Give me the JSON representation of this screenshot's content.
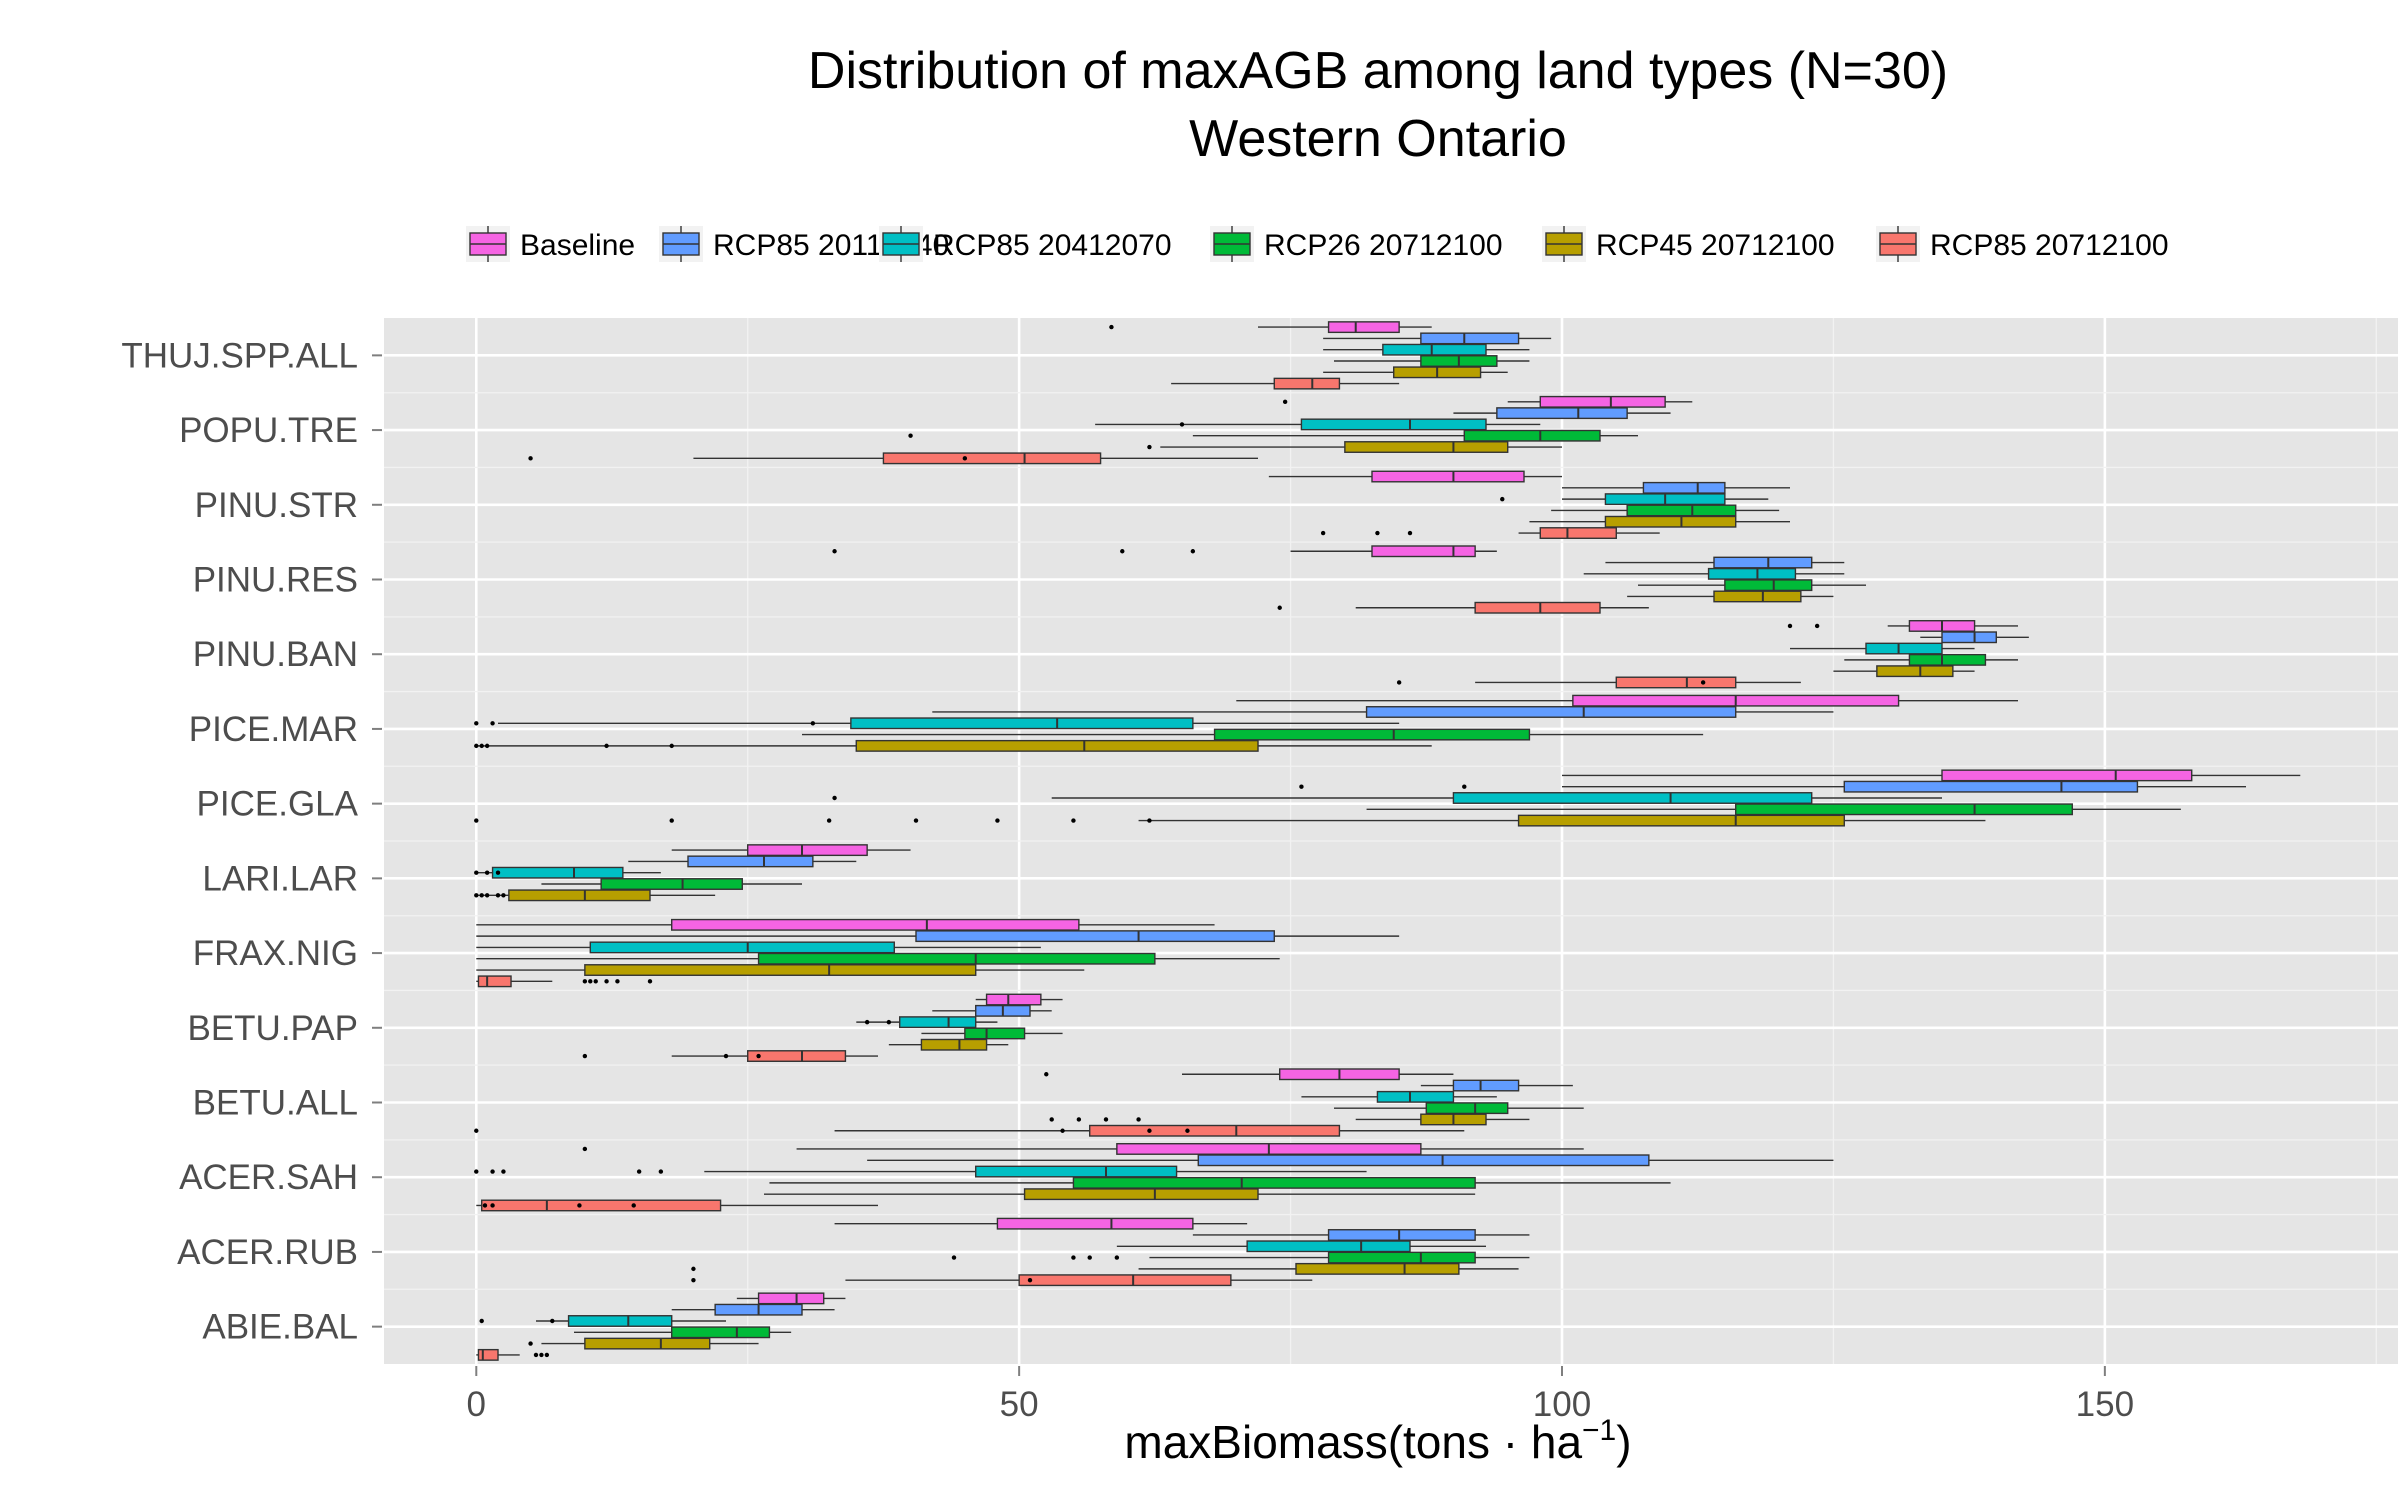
{
  "chart_data": {
    "type": "boxplot",
    "title": "Distribution of maxAGB among land types (N=30)",
    "subtitle": "Western Ontario",
    "xlabel": "maxBiomass(tons",
    "xlabel_unit": "ha",
    "xlabel_exp": "−1",
    "xlim": [
      -8.5,
      177
    ],
    "x_ticks": [
      0,
      50,
      100,
      150
    ],
    "x_tick_labels": [
      "0",
      "50",
      "100",
      "150"
    ],
    "grid": true,
    "legend_position": "top",
    "series": [
      {
        "name": "Baseline",
        "color": "#F564E3"
      },
      {
        "name": "RCP85 20112040",
        "color": "#619CFF"
      },
      {
        "name": "RCP85 20412070",
        "color": "#00BFC4"
      },
      {
        "name": "RCP26 20712100",
        "color": "#00BA38"
      },
      {
        "name": "RCP45 20712100",
        "color": "#B79F00"
      },
      {
        "name": "RCP85 20712100",
        "color": "#F8766D"
      }
    ],
    "categories": [
      "THUJ.SPP.ALL",
      "POPU.TRE",
      "PINU.STR",
      "PINU.RES",
      "PINU.BAN",
      "PICE.MAR",
      "PICE.GLA",
      "LARI.LAR",
      "FRAX.NIG",
      "BETU.PAP",
      "BETU.ALL",
      "ACER.SAH",
      "ACER.RUB",
      "ABIE.BAL"
    ],
    "boxes": [
      {
        "cat": "THUJ.SPP.ALL",
        "series": "Baseline",
        "stats": [
          72,
          78.5,
          81,
          85,
          88
        ],
        "outliers": [
          58.5
        ]
      },
      {
        "cat": "THUJ.SPP.ALL",
        "series": "RCP85 20112040",
        "stats": [
          78,
          87,
          91,
          96,
          99
        ],
        "outliers": []
      },
      {
        "cat": "THUJ.SPP.ALL",
        "series": "RCP85 20412070",
        "stats": [
          78,
          83.5,
          88,
          93,
          97
        ],
        "outliers": []
      },
      {
        "cat": "THUJ.SPP.ALL",
        "series": "RCP26 20712100",
        "stats": [
          79,
          87,
          90.5,
          94,
          97
        ],
        "outliers": []
      },
      {
        "cat": "THUJ.SPP.ALL",
        "series": "RCP45 20712100",
        "stats": [
          78,
          84.5,
          88.5,
          92.5,
          95
        ],
        "outliers": []
      },
      {
        "cat": "THUJ.SPP.ALL",
        "series": "RCP85 20712100",
        "stats": [
          64,
          73.5,
          77,
          79.5,
          85
        ],
        "outliers": []
      },
      {
        "cat": "POPU.TRE",
        "series": "Baseline",
        "stats": [
          95,
          98,
          104.5,
          109.5,
          112
        ],
        "outliers": [
          74.5
        ]
      },
      {
        "cat": "POPU.TRE",
        "series": "RCP85 20112040",
        "stats": [
          90,
          94,
          101.5,
          106,
          110
        ],
        "outliers": []
      },
      {
        "cat": "POPU.TRE",
        "series": "RCP85 20412070",
        "stats": [
          57,
          76,
          86,
          93,
          98
        ],
        "outliers": [
          65
        ]
      },
      {
        "cat": "POPU.TRE",
        "series": "RCP26 20712100",
        "stats": [
          66,
          91,
          98,
          103.5,
          107
        ],
        "outliers": [
          40
        ]
      },
      {
        "cat": "POPU.TRE",
        "series": "RCP45 20712100",
        "stats": [
          63,
          80,
          90,
          95,
          100
        ],
        "outliers": [
          62
        ]
      },
      {
        "cat": "POPU.TRE",
        "series": "RCP85 20712100",
        "stats": [
          20,
          37.5,
          50.5,
          57.5,
          72
        ],
        "outliers": [
          5,
          45
        ]
      },
      {
        "cat": "PINU.STR",
        "series": "Baseline",
        "stats": [
          73,
          82.5,
          90,
          96.5,
          100
        ],
        "outliers": []
      },
      {
        "cat": "PINU.STR",
        "series": "RCP85 20112040",
        "stats": [
          100,
          107.5,
          112.5,
          115,
          121
        ],
        "outliers": []
      },
      {
        "cat": "PINU.STR",
        "series": "RCP85 20412070",
        "stats": [
          100,
          104,
          109.5,
          115,
          119
        ],
        "outliers": [
          94.5
        ]
      },
      {
        "cat": "PINU.STR",
        "series": "RCP26 20712100",
        "stats": [
          99,
          106,
          112,
          116,
          120
        ],
        "outliers": []
      },
      {
        "cat": "PINU.STR",
        "series": "RCP45 20712100",
        "stats": [
          97,
          104,
          111,
          116,
          121
        ],
        "outliers": []
      },
      {
        "cat": "PINU.STR",
        "series": "RCP85 20712100",
        "stats": [
          96,
          98,
          100.5,
          105,
          109
        ],
        "outliers": [
          78,
          83,
          86
        ]
      },
      {
        "cat": "PINU.RES",
        "series": "Baseline",
        "stats": [
          75,
          82.5,
          90,
          92,
          94
        ],
        "outliers": [
          33,
          59.5,
          66
        ]
      },
      {
        "cat": "PINU.RES",
        "series": "RCP85 20112040",
        "stats": [
          104,
          114,
          119,
          123,
          126
        ],
        "outliers": []
      },
      {
        "cat": "PINU.RES",
        "series": "RCP85 20412070",
        "stats": [
          102,
          113.5,
          118,
          121.5,
          126
        ],
        "outliers": []
      },
      {
        "cat": "PINU.RES",
        "series": "RCP26 20712100",
        "stats": [
          107,
          115,
          119.5,
          123,
          128
        ],
        "outliers": []
      },
      {
        "cat": "PINU.RES",
        "series": "RCP45 20712100",
        "stats": [
          106,
          114,
          118.5,
          122,
          125
        ],
        "outliers": []
      },
      {
        "cat": "PINU.RES",
        "series": "RCP85 20712100",
        "stats": [
          81,
          92,
          98,
          103.5,
          108
        ],
        "outliers": [
          74
        ]
      },
      {
        "cat": "PINU.BAN",
        "series": "Baseline",
        "stats": [
          130,
          132,
          135,
          138,
          142
        ],
        "outliers": [
          121,
          123.5
        ]
      },
      {
        "cat": "PINU.BAN",
        "series": "RCP85 20112040",
        "stats": [
          133,
          135,
          138,
          140,
          143
        ],
        "outliers": []
      },
      {
        "cat": "PINU.BAN",
        "series": "RCP85 20412070",
        "stats": [
          121,
          128,
          131,
          135,
          138
        ],
        "outliers": []
      },
      {
        "cat": "PINU.BAN",
        "series": "RCP26 20712100",
        "stats": [
          126,
          132,
          135,
          139,
          142
        ],
        "outliers": []
      },
      {
        "cat": "PINU.BAN",
        "series": "RCP45 20712100",
        "stats": [
          125,
          129,
          133,
          136,
          138
        ],
        "outliers": []
      },
      {
        "cat": "PINU.BAN",
        "series": "RCP85 20712100",
        "stats": [
          92,
          105,
          111.5,
          116,
          122
        ],
        "outliers": [
          85,
          113
        ]
      },
      {
        "cat": "PICE.MAR",
        "series": "Baseline",
        "stats": [
          70,
          101,
          116,
          131,
          142
        ],
        "outliers": []
      },
      {
        "cat": "PICE.MAR",
        "series": "RCP85 20112040",
        "stats": [
          42,
          82,
          102,
          116,
          125
        ],
        "outliers": []
      },
      {
        "cat": "PICE.MAR",
        "series": "RCP85 20412070",
        "stats": [
          2,
          34.5,
          53.5,
          66,
          85
        ],
        "outliers": [
          0,
          1.5,
          31
        ]
      },
      {
        "cat": "PICE.MAR",
        "series": "RCP26 20712100",
        "stats": [
          30,
          68,
          84.5,
          97,
          113
        ],
        "outliers": []
      },
      {
        "cat": "PICE.MAR",
        "series": "RCP45 20712100",
        "stats": [
          0,
          35,
          56,
          72,
          88
        ],
        "outliers": [
          0,
          0.5,
          1,
          12,
          18
        ]
      },
      {
        "cat": "PICE.GLA",
        "series": "Baseline",
        "stats": [
          100,
          135,
          151,
          158,
          168
        ],
        "outliers": []
      },
      {
        "cat": "PICE.GLA",
        "series": "RCP85 20112040",
        "stats": [
          100,
          126,
          146,
          153,
          163
        ],
        "outliers": [
          91,
          76
        ]
      },
      {
        "cat": "PICE.GLA",
        "series": "RCP85 20412070",
        "stats": [
          53,
          90,
          110,
          123,
          135
        ],
        "outliers": [
          33
        ]
      },
      {
        "cat": "PICE.GLA",
        "series": "RCP26 20712100",
        "stats": [
          82,
          116,
          138,
          147,
          157
        ],
        "outliers": []
      },
      {
        "cat": "PICE.GLA",
        "series": "RCP45 20712100",
        "stats": [
          61,
          96,
          116,
          126,
          139
        ],
        "outliers": [
          0,
          18,
          32.5,
          40.5,
          48,
          55,
          62
        ]
      },
      {
        "cat": "LARI.LAR",
        "series": "Baseline",
        "stats": [
          18,
          25,
          30,
          36,
          40
        ],
        "outliers": []
      },
      {
        "cat": "LARI.LAR",
        "series": "RCP85 20112040",
        "stats": [
          14,
          19.5,
          26.5,
          31,
          35
        ],
        "outliers": []
      },
      {
        "cat": "LARI.LAR",
        "series": "RCP85 20412070",
        "stats": [
          0,
          1.5,
          9,
          13.5,
          17
        ],
        "outliers": [
          0,
          1,
          2
        ]
      },
      {
        "cat": "LARI.LAR",
        "series": "RCP26 20712100",
        "stats": [
          6,
          11.5,
          19,
          24.5,
          30
        ],
        "outliers": []
      },
      {
        "cat": "LARI.LAR",
        "series": "RCP45 20712100",
        "stats": [
          0,
          3,
          10,
          16,
          22
        ],
        "outliers": [
          0,
          0.5,
          1,
          2,
          2.5
        ]
      },
      {
        "cat": "FRAX.NIG",
        "series": "Baseline",
        "stats": [
          0,
          18,
          41.5,
          55.5,
          68
        ],
        "outliers": []
      },
      {
        "cat": "FRAX.NIG",
        "series": "RCP85 20112040",
        "stats": [
          0,
          40.5,
          61,
          73.5,
          85
        ],
        "outliers": []
      },
      {
        "cat": "FRAX.NIG",
        "series": "RCP85 20412070",
        "stats": [
          0,
          10.5,
          25,
          38.5,
          52
        ],
        "outliers": []
      },
      {
        "cat": "FRAX.NIG",
        "series": "RCP26 20712100",
        "stats": [
          0,
          26,
          46,
          62.5,
          74
        ],
        "outliers": []
      },
      {
        "cat": "FRAX.NIG",
        "series": "RCP45 20712100",
        "stats": [
          0,
          10,
          32.5,
          46,
          56
        ],
        "outliers": []
      },
      {
        "cat": "FRAX.NIG",
        "series": "RCP85 20712100",
        "stats": [
          0,
          0.2,
          1,
          3.2,
          7
        ],
        "outliers": [
          10,
          10.5,
          11,
          12,
          13,
          16
        ]
      },
      {
        "cat": "BETU.PAP",
        "series": "Baseline",
        "stats": [
          46,
          47,
          49,
          52,
          54
        ],
        "outliers": []
      },
      {
        "cat": "BETU.PAP",
        "series": "RCP85 20112040",
        "stats": [
          42,
          46,
          48.5,
          51,
          53
        ],
        "outliers": []
      },
      {
        "cat": "BETU.PAP",
        "series": "RCP85 20412070",
        "stats": [
          35,
          39,
          43.5,
          46,
          48
        ],
        "outliers": [
          36,
          38
        ]
      },
      {
        "cat": "BETU.PAP",
        "series": "RCP26 20712100",
        "stats": [
          41,
          45,
          47,
          50.5,
          54
        ],
        "outliers": []
      },
      {
        "cat": "BETU.PAP",
        "series": "RCP45 20712100",
        "stats": [
          38,
          41,
          44.5,
          47,
          49
        ],
        "outliers": []
      },
      {
        "cat": "BETU.PAP",
        "series": "RCP85 20712100",
        "stats": [
          18,
          25,
          30,
          34,
          37
        ],
        "outliers": [
          10,
          23,
          26
        ]
      },
      {
        "cat": "BETU.ALL",
        "series": "Baseline",
        "stats": [
          65,
          74,
          79.5,
          85,
          90
        ],
        "outliers": [
          52.5
        ]
      },
      {
        "cat": "BETU.ALL",
        "series": "RCP85 20112040",
        "stats": [
          87,
          90,
          92.5,
          96,
          101
        ],
        "outliers": []
      },
      {
        "cat": "BETU.ALL",
        "series": "RCP85 20412070",
        "stats": [
          76,
          83,
          86,
          90,
          94
        ],
        "outliers": []
      },
      {
        "cat": "BETU.ALL",
        "series": "RCP26 20712100",
        "stats": [
          79,
          87.5,
          92,
          95,
          102
        ],
        "outliers": []
      },
      {
        "cat": "BETU.ALL",
        "series": "RCP45 20712100",
        "stats": [
          81,
          87,
          90,
          93,
          97
        ],
        "outliers": [
          53,
          55.5,
          58,
          61
        ]
      },
      {
        "cat": "BETU.ALL",
        "series": "RCP85 20712100",
        "stats": [
          33,
          56.5,
          70,
          79.5,
          91
        ],
        "outliers": [
          0,
          54,
          62,
          65.5
        ]
      },
      {
        "cat": "ACER.SAH",
        "series": "Baseline",
        "stats": [
          29.5,
          59,
          73,
          87,
          102
        ],
        "outliers": [
          10
        ]
      },
      {
        "cat": "ACER.SAH",
        "series": "RCP85 20112040",
        "stats": [
          36,
          66.5,
          89,
          108,
          125
        ],
        "outliers": []
      },
      {
        "cat": "ACER.SAH",
        "series": "RCP85 20412070",
        "stats": [
          21,
          46,
          58,
          64.5,
          82
        ],
        "outliers": [
          0,
          1.5,
          2.5,
          15,
          17
        ]
      },
      {
        "cat": "ACER.SAH",
        "series": "RCP26 20712100",
        "stats": [
          27,
          55,
          70.5,
          92,
          110
        ],
        "outliers": []
      },
      {
        "cat": "ACER.SAH",
        "series": "RCP45 20712100",
        "stats": [
          26.5,
          50.5,
          62.5,
          72,
          92
        ],
        "outliers": []
      },
      {
        "cat": "ACER.SAH",
        "series": "RCP85 20712100",
        "stats": [
          0,
          0.5,
          6.5,
          22.5,
          37
        ],
        "outliers": [
          0.8,
          1.5,
          9.5,
          14.5
        ]
      },
      {
        "cat": "ACER.RUB",
        "series": "Baseline",
        "stats": [
          33,
          48,
          58.5,
          66,
          71
        ],
        "outliers": []
      },
      {
        "cat": "ACER.RUB",
        "series": "RCP85 20112040",
        "stats": [
          66,
          78.5,
          85,
          92,
          97
        ],
        "outliers": []
      },
      {
        "cat": "ACER.RUB",
        "series": "RCP85 20412070",
        "stats": [
          59,
          71,
          81.5,
          86,
          93
        ],
        "outliers": []
      },
      {
        "cat": "ACER.RUB",
        "series": "RCP26 20712100",
        "stats": [
          62,
          78.5,
          87,
          92,
          97
        ],
        "outliers": [
          44,
          55,
          56.5,
          59
        ]
      },
      {
        "cat": "ACER.RUB",
        "series": "RCP45 20712100",
        "stats": [
          61,
          75.5,
          85.5,
          90.5,
          96
        ],
        "outliers": [
          20
        ]
      },
      {
        "cat": "ACER.RUB",
        "series": "RCP85 20712100",
        "stats": [
          34,
          50,
          60.5,
          69.5,
          77
        ],
        "outliers": [
          20,
          51
        ]
      },
      {
        "cat": "ABIE.BAL",
        "series": "Baseline",
        "stats": [
          24,
          26,
          29.5,
          32,
          34
        ],
        "outliers": []
      },
      {
        "cat": "ABIE.BAL",
        "series": "RCP85 20112040",
        "stats": [
          18,
          22,
          26,
          30,
          33
        ],
        "outliers": []
      },
      {
        "cat": "ABIE.BAL",
        "series": "RCP85 20412070",
        "stats": [
          5.5,
          8.5,
          14,
          18,
          23
        ],
        "outliers": [
          0.5,
          7
        ]
      },
      {
        "cat": "ABIE.BAL",
        "series": "RCP26 20712100",
        "stats": [
          9,
          18,
          24,
          27,
          29
        ],
        "outliers": []
      },
      {
        "cat": "ABIE.BAL",
        "series": "RCP45 20712100",
        "stats": [
          6,
          10,
          17,
          21.5,
          26
        ],
        "outliers": [
          5
        ]
      },
      {
        "cat": "ABIE.BAL",
        "series": "RCP85 20712100",
        "stats": [
          0,
          0.2,
          0.6,
          2,
          4
        ],
        "outliers": [
          5.5,
          6,
          6.5
        ]
      }
    ]
  }
}
